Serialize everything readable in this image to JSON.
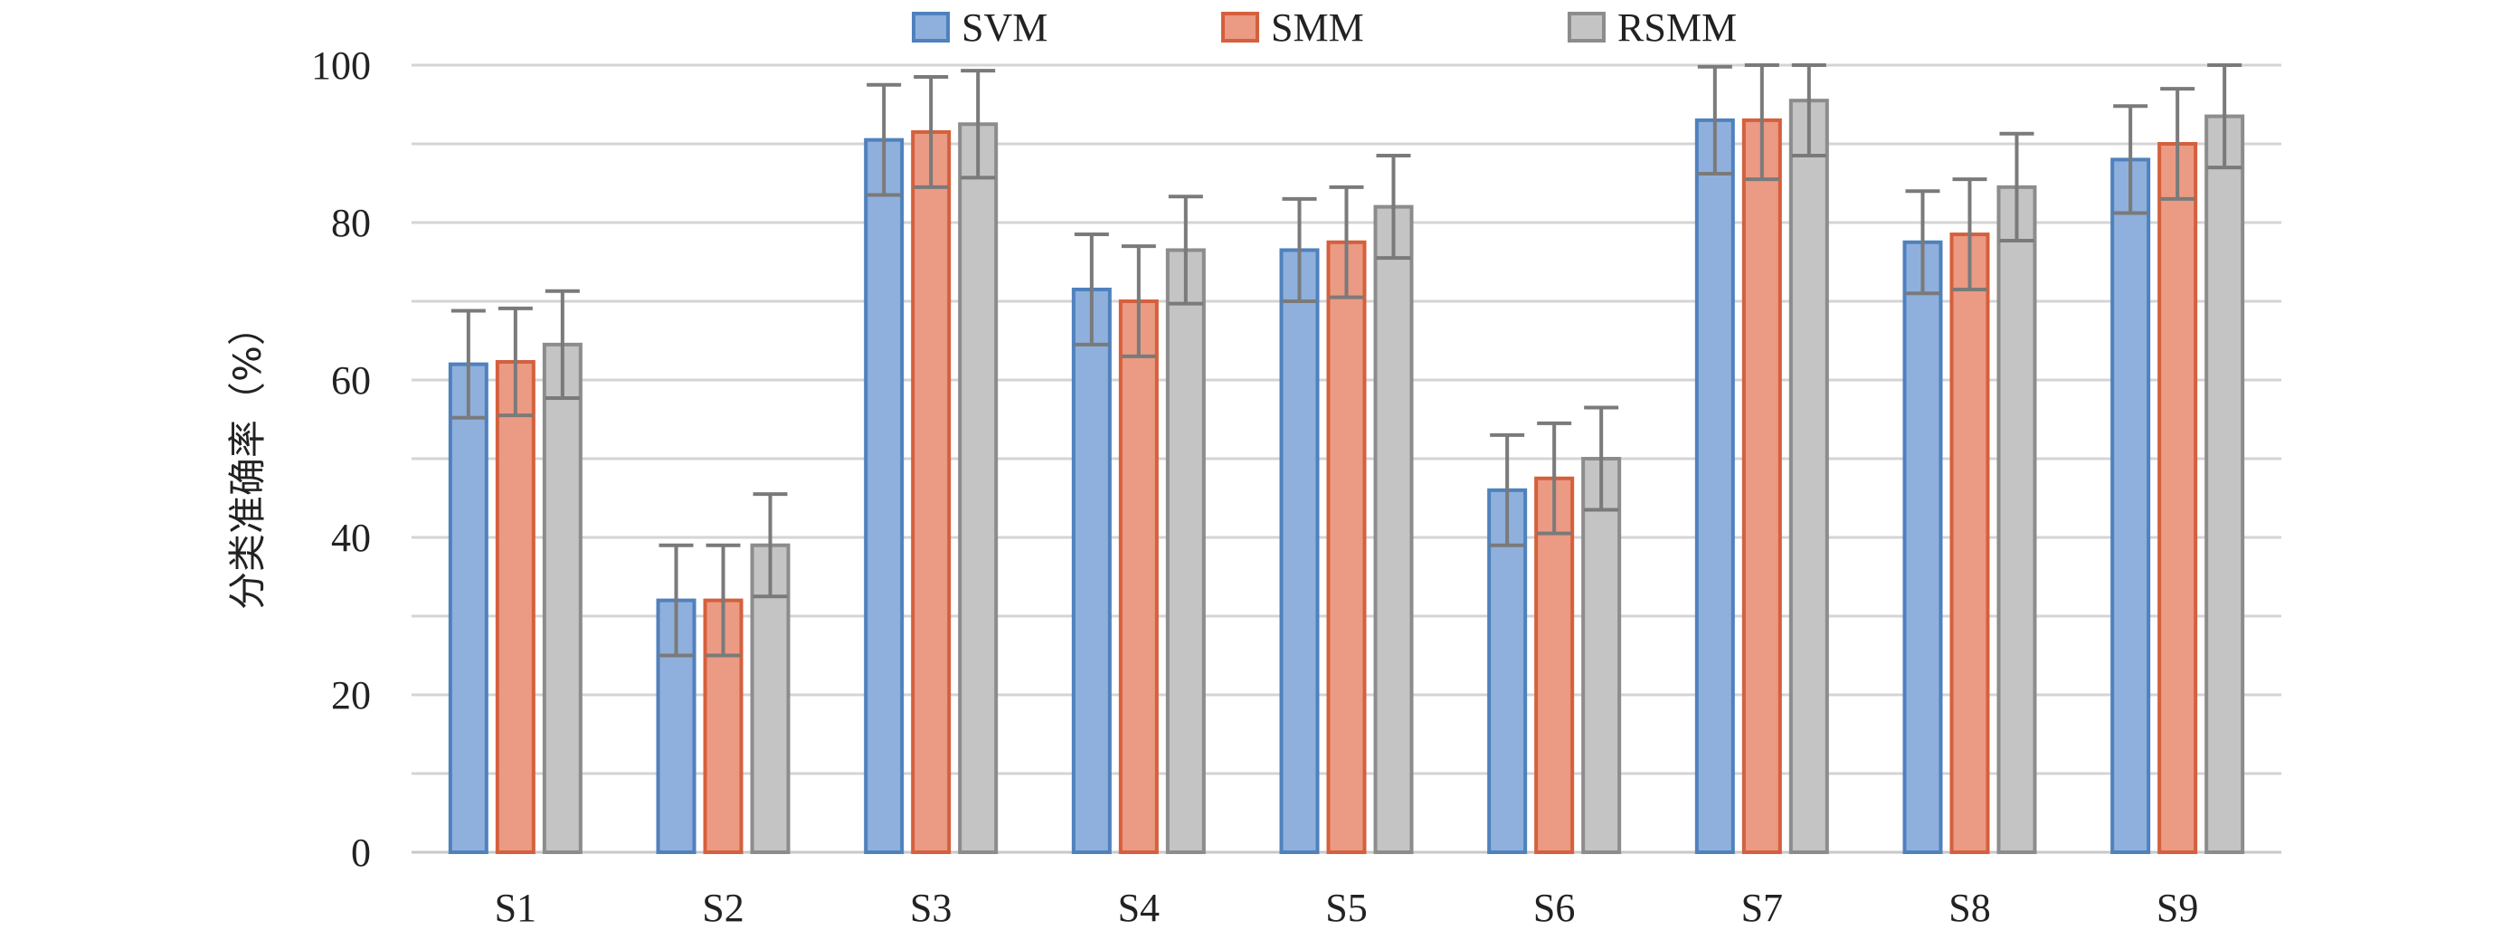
{
  "chart_data": {
    "type": "bar",
    "title": "",
    "xlabel": "",
    "ylabel": "分类准确率（%）",
    "ylim": [
      0,
      100
    ],
    "yticks": [
      0,
      20,
      40,
      60,
      80,
      100
    ],
    "grid": true,
    "legend_position": "top",
    "categories": [
      "S1",
      "S2",
      "S3",
      "S4",
      "S5",
      "S6",
      "S7",
      "S8",
      "S9"
    ],
    "series": [
      {
        "name": "SVM",
        "values": [
          62,
          32,
          90.5,
          71.5,
          76.5,
          46,
          93,
          77.5,
          88
        ],
        "errors": [
          6.8,
          7,
          7,
          7,
          6.5,
          7,
          6.8,
          6.5,
          6.8
        ],
        "color": "#8fb0dc",
        "edge": "#4f81bd"
      },
      {
        "name": "SMM",
        "values": [
          62.3,
          32,
          91.5,
          70,
          77.5,
          47.5,
          93,
          78.5,
          90
        ],
        "errors": [
          6.8,
          7,
          7,
          7,
          7,
          7,
          7.5,
          7,
          7
        ],
        "color": "#eb9a84",
        "edge": "#d4603d"
      },
      {
        "name": "RSMM",
        "values": [
          64.5,
          39,
          92.5,
          76.5,
          82,
          50,
          95.5,
          84.5,
          93.5
        ],
        "errors": [
          6.8,
          6.5,
          6.8,
          6.8,
          6.5,
          6.5,
          7,
          6.8,
          6.5
        ],
        "color": "#c4c4c4",
        "edge": "#8c8c8c"
      }
    ]
  }
}
